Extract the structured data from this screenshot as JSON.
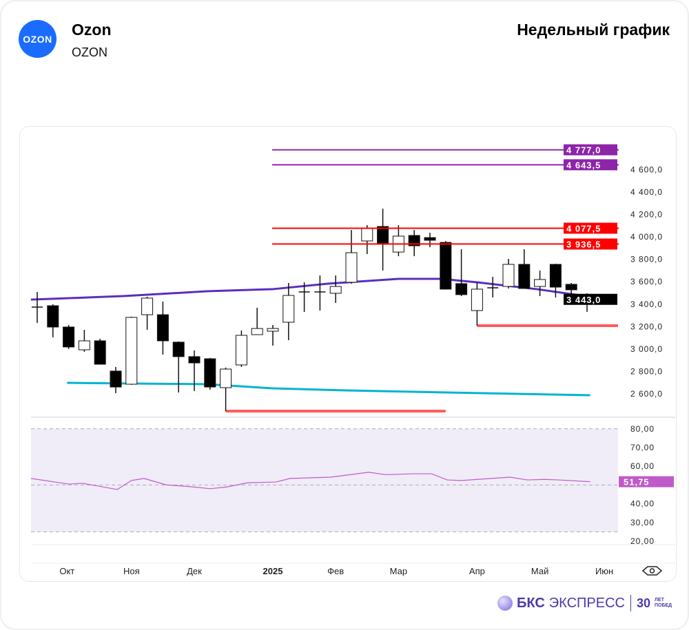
{
  "header": {
    "logo_text": "OZON",
    "name": "Ozon",
    "ticker": "OZON",
    "title": "Недельный график"
  },
  "brand": {
    "name_bold": "БКС",
    "name_light": "ЭКСПРЕСС",
    "years": "30",
    "years_label_1": "ЛЕТ",
    "years_label_2": "ПОБЕД"
  },
  "chart_data": {
    "type": "candlestick",
    "title": "Недельный график",
    "price_axis": {
      "range": [
        2450,
        4850
      ],
      "ticks": [
        2600,
        2800,
        3000,
        3200,
        3400,
        3600,
        3800,
        4000,
        4200,
        4400,
        4600
      ],
      "tick_labels": [
        "2 600,0",
        "2 800,0",
        "3 000,0",
        "3 200,0",
        "3 400,0",
        "3 600,0",
        "3 800,0",
        "4 000,0",
        "4 200,0",
        "4 400,0",
        "4 600,0"
      ]
    },
    "x_labels": [
      {
        "label": "Окт",
        "index": 1.9
      },
      {
        "label": "Ноя",
        "index": 6
      },
      {
        "label": "Дек",
        "index": 10
      },
      {
        "label": "2025",
        "index": 15
      },
      {
        "label": "Фев",
        "index": 19
      },
      {
        "label": "Мар",
        "index": 23
      },
      {
        "label": "Апр",
        "index": 28
      },
      {
        "label": "Май",
        "index": 32
      },
      {
        "label": "Июн",
        "index": 36.1
      }
    ],
    "candles": [
      [
        3374,
        3509,
        3233,
        3374
      ],
      [
        3386,
        3399,
        3104,
        3196
      ],
      [
        3196,
        3214,
        3000,
        3018
      ],
      [
        2993,
        3171,
        2975,
        3073
      ],
      [
        3073,
        3091,
        2864,
        2864
      ],
      [
        2803,
        2840,
        2606,
        2661
      ],
      [
        2686,
        3288,
        2680,
        3282
      ],
      [
        3306,
        3466,
        3171,
        3454
      ],
      [
        3306,
        3423,
        2950,
        3073
      ],
      [
        3061,
        3067,
        2612,
        2932
      ],
      [
        2932,
        2987,
        2625,
        2876
      ],
      [
        2913,
        2920,
        2637,
        2661
      ],
      [
        2655,
        2834,
        2446,
        2821
      ],
      [
        2858,
        3165,
        2840,
        3122
      ],
      [
        3128,
        3368,
        3128,
        3183
      ],
      [
        3159,
        3214,
        3030,
        3183
      ],
      [
        3239,
        3589,
        3079,
        3478
      ],
      [
        3509,
        3595,
        3331,
        3509
      ],
      [
        3509,
        3656,
        3343,
        3509
      ],
      [
        3497,
        3656,
        3411,
        3558
      ],
      [
        3595,
        4062,
        3583,
        3859
      ],
      [
        3964,
        4105,
        3847,
        4074
      ],
      [
        4093,
        4252,
        3700,
        3945
      ],
      [
        3865,
        4105,
        3828,
        4007
      ],
      [
        4013,
        4062,
        3828,
        3921
      ],
      [
        3994,
        4037,
        3908,
        3970
      ],
      [
        3951,
        3963,
        3534,
        3534
      ],
      [
        3583,
        3890,
        3472,
        3485
      ],
      [
        3343,
        3595,
        3208,
        3534
      ],
      [
        3546,
        3644,
        3460,
        3546
      ],
      [
        3558,
        3804,
        3540,
        3755
      ],
      [
        3755,
        3890,
        3540,
        3540
      ],
      [
        3558,
        3700,
        3472,
        3620
      ],
      [
        3755,
        3761,
        3460,
        3552
      ],
      [
        3577,
        3589,
        3460,
        3528
      ],
      [
        3485,
        3497,
        3331,
        3443
      ]
    ],
    "candle_format": "open,high,low,close",
    "ma_slow": {
      "color": "#5b2dbf",
      "points": [
        [
          -0.4,
          3441
        ],
        [
          5.5,
          3472
        ],
        [
          10.8,
          3515
        ],
        [
          15,
          3534
        ],
        [
          18.5,
          3583
        ],
        [
          23,
          3626
        ],
        [
          25.7,
          3626
        ],
        [
          28,
          3595
        ],
        [
          31.8,
          3534
        ],
        [
          35.5,
          3460
        ]
      ]
    },
    "ma_long": {
      "color": "#00b4d0",
      "points": [
        [
          1.9,
          2698
        ],
        [
          10.8,
          2686
        ],
        [
          15,
          2649
        ],
        [
          19.6,
          2631
        ],
        [
          28.3,
          2606
        ],
        [
          35.2,
          2588
        ]
      ]
    },
    "levels": [
      {
        "value": 4777,
        "label": "4 777,0",
        "color": "#8e24aa"
      },
      {
        "value": 4643.5,
        "label": "4 643,5",
        "color": "#8e24aa"
      },
      {
        "value": 4077.5,
        "label": "4 077,5",
        "color": "#ff0000"
      },
      {
        "value": 3936.5,
        "label": "3 936,5",
        "color": "#ff0000"
      }
    ],
    "supports": [
      {
        "value": 3208,
        "from_index": 28,
        "color": "#ff5a5f"
      },
      {
        "value": 2446,
        "from_index": 12,
        "to_index": 26,
        "color": "#ff5a5f"
      }
    ],
    "last_price": {
      "value": 3443,
      "label": "3 443,0"
    },
    "rsi": {
      "ticks": [
        20,
        30,
        40,
        60,
        70,
        80
      ],
      "tick_labels": [
        "20,00",
        "30,00",
        "40,00",
        "60,00",
        "70,00",
        "80,00"
      ],
      "band": [
        25,
        80
      ],
      "mid": 50,
      "color": "#c05ac8",
      "last_label": "51,75",
      "points": [
        [
          -0.4,
          53.5
        ],
        [
          2,
          50.5
        ],
        [
          2.9,
          50.9
        ],
        [
          5.1,
          47.6
        ],
        [
          6,
          52.4
        ],
        [
          6.8,
          53.5
        ],
        [
          8.2,
          50.1
        ],
        [
          9.9,
          49
        ],
        [
          11,
          48
        ],
        [
          12.1,
          49
        ],
        [
          13.4,
          51.2
        ],
        [
          15.2,
          51.6
        ],
        [
          16.1,
          53.5
        ],
        [
          18.7,
          54.2
        ],
        [
          21.1,
          56.8
        ],
        [
          22.2,
          55.5
        ],
        [
          24,
          56
        ],
        [
          25.1,
          56
        ],
        [
          26.1,
          52.7
        ],
        [
          27,
          52.4
        ],
        [
          30.1,
          54.2
        ],
        [
          31.2,
          52.7
        ],
        [
          32.3,
          53
        ],
        [
          33.2,
          52.7
        ],
        [
          35.2,
          51.75
        ]
      ]
    }
  }
}
